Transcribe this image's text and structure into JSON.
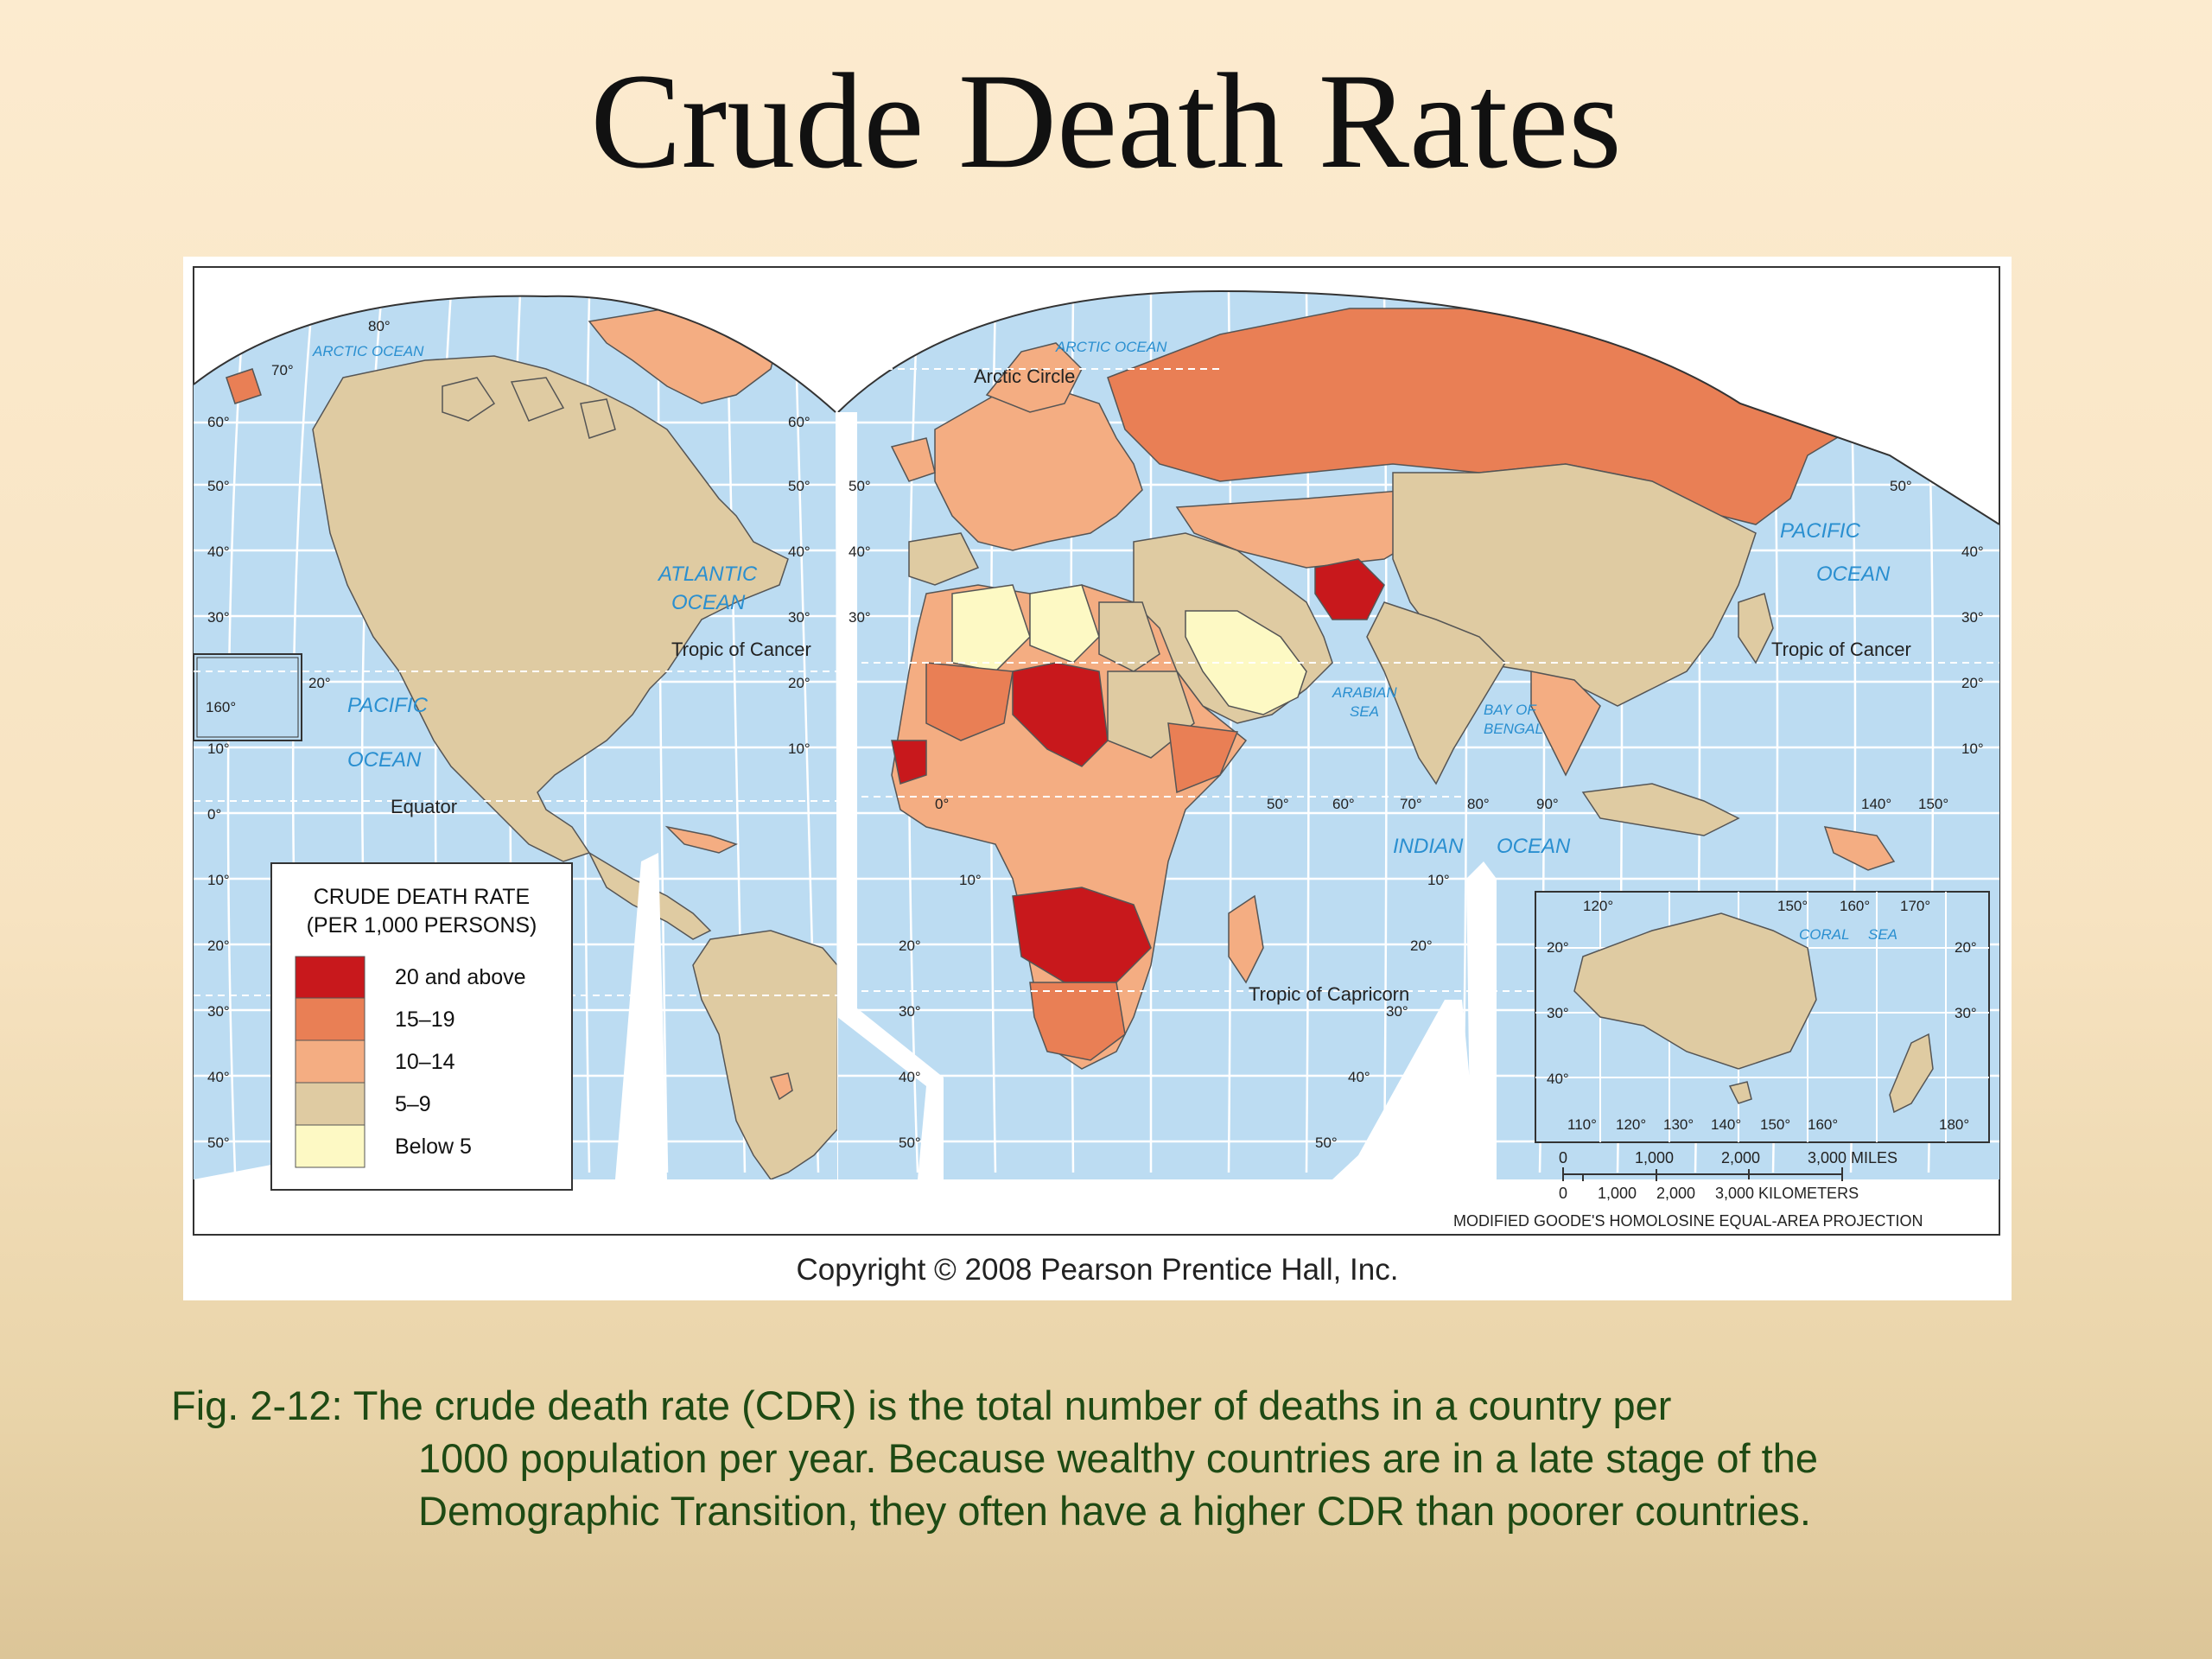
{
  "slide": {
    "title": "Crude Death Rates",
    "copyright": "Copyright © 2008 Pearson Prentice Hall, Inc.",
    "caption_first": "Fig. 2-12:  The crude death rate (CDR) is the total number of deaths in a country per",
    "caption_rest": "1000 population per year.  Because wealthy countries are in a late stage of the Demographic Transition, they often have a higher CDR than poorer countries."
  },
  "map": {
    "colors": {
      "ocean": "#bcdcf2",
      "land_5_9": "#dfcba2",
      "land_10_14": "#f4ad82",
      "land_15_19": "#e97f55",
      "land_20_up": "#c8181c",
      "land_below_5": "#fdf9c4",
      "border": "#555555"
    },
    "oceans": {
      "arctic_left": "ARCTIC OCEAN",
      "arctic_right": "ARCTIC OCEAN",
      "atlantic_1": "ATLANTIC",
      "atlantic_2": "OCEAN",
      "pacific_left_1": "PACIFIC",
      "pacific_left_2": "OCEAN",
      "pacific_right_1": "PACIFIC",
      "pacific_right_2": "OCEAN",
      "indian_1": "INDIAN",
      "indian_2": "OCEAN",
      "arabian_1": "ARABIAN",
      "arabian_2": "SEA",
      "bengal_1": "BAY OF",
      "bengal_2": "BENGAL",
      "coral_1": "CORAL",
      "coral_2": "SEA"
    },
    "lines": {
      "arctic_circle": "Arctic Circle",
      "tropic_cancer_left": "Tropic of Cancer",
      "tropic_cancer_right": "Tropic of Cancer",
      "equator": "Equator",
      "tropic_capricorn": "Tropic of Capricorn"
    },
    "degrees": {
      "d80": "80°",
      "d70": "70°",
      "d60": "60°",
      "d50": "50°",
      "d40": "40°",
      "d30": "30°",
      "d20": "20°",
      "d10": "10°",
      "d0": "0°",
      "d160": "160°",
      "d90": "90°",
      "d140": "140°",
      "d150": "150°",
      "d120": "120°",
      "d170": "170°",
      "d110": "110°",
      "d130": "130°",
      "d180": "180°"
    },
    "legend": {
      "title_1": "CRUDE DEATH RATE",
      "title_2": "(PER 1,000 PERSONS)",
      "items": [
        {
          "label": "20 and above",
          "color": "#c8181c"
        },
        {
          "label": "15–19",
          "color": "#e97f55"
        },
        {
          "label": "10–14",
          "color": "#f4ad82"
        },
        {
          "label": "5–9",
          "color": "#dfcba2"
        },
        {
          "label": "Below 5",
          "color": "#fdf9c4"
        }
      ]
    },
    "scale": {
      "m0": "0",
      "m1000": "1,000",
      "m2000": "2,000",
      "m3000": "3,000 MILES",
      "k0": "0",
      "k1000": "1,000",
      "k2000": "2,000",
      "k3000": "3,000 KILOMETERS"
    },
    "projection": "MODIFIED GOODE'S HOMOLOSINE EQUAL-AREA PROJECTION"
  }
}
